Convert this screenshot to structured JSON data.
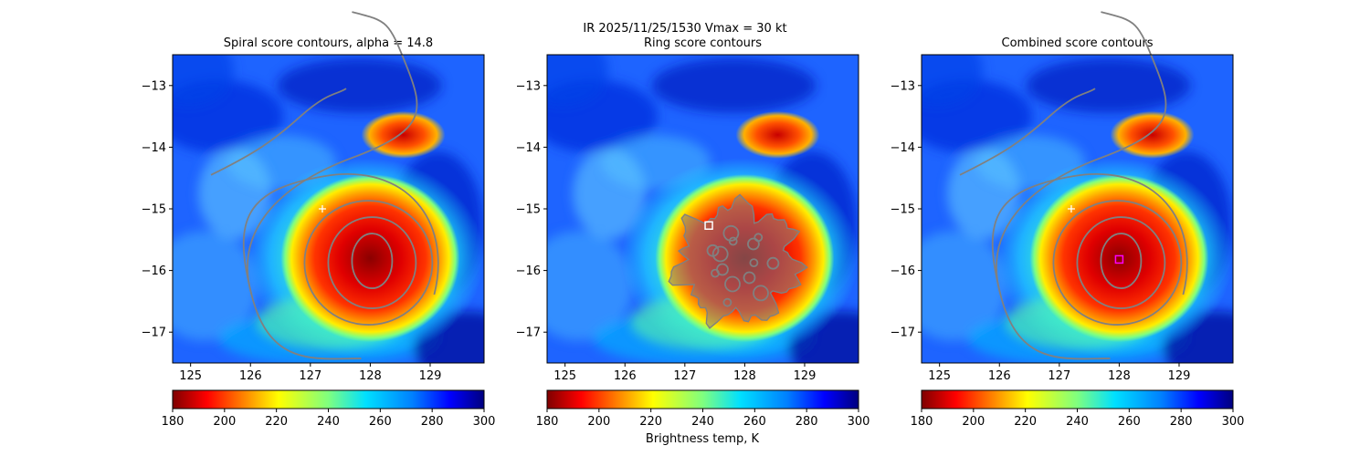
{
  "figure": {
    "suptitle": "IR  2025/11/25/1530    Vmax = 30 kt",
    "colorbar_label": "Brightness temp, K"
  },
  "chart_data": [
    {
      "type": "heatmap",
      "title": "Spiral score contours, alpha = 14.8",
      "xlim": [
        124.7,
        129.9
      ],
      "ylim": [
        -17.5,
        -12.5
      ],
      "xticks": [
        "125",
        "126",
        "127",
        "128",
        "129"
      ],
      "yticks": [
        "−13",
        "−14",
        "−15",
        "−16",
        "−17"
      ],
      "colorbar": {
        "vmin": 180,
        "vmax": 300,
        "ticks": [
          "180",
          "200",
          "220",
          "240",
          "260",
          "280",
          "300"
        ],
        "colormap": "jet_r"
      },
      "contour_color": "#808080",
      "markers": [
        {
          "kind": "plus",
          "x": 127.2,
          "y": -15.0,
          "color": "#ffffff"
        }
      ]
    },
    {
      "type": "heatmap",
      "title": "Ring score contours",
      "xlim": [
        124.7,
        129.9
      ],
      "ylim": [
        -17.5,
        -12.5
      ],
      "xticks": [
        "125",
        "126",
        "127",
        "128",
        "129"
      ],
      "yticks": [
        "−13",
        "−14",
        "−15",
        "−16",
        "−17"
      ],
      "colorbar": {
        "vmin": 180,
        "vmax": 300,
        "ticks": [
          "180",
          "200",
          "220",
          "240",
          "260",
          "280",
          "300"
        ],
        "colormap": "jet_r"
      },
      "contour_color": "#808080",
      "markers": [
        {
          "kind": "square",
          "x": 127.4,
          "y": -15.27,
          "color": "#ffffff"
        }
      ]
    },
    {
      "type": "heatmap",
      "title": "Combined score contours",
      "xlim": [
        124.7,
        129.9
      ],
      "ylim": [
        -17.5,
        -12.5
      ],
      "xticks": [
        "125",
        "126",
        "127",
        "128",
        "129"
      ],
      "yticks": [
        "−13",
        "−14",
        "−15",
        "−16",
        "−17"
      ],
      "colorbar": {
        "vmin": 180,
        "vmax": 300,
        "ticks": [
          "180",
          "200",
          "220",
          "240",
          "260",
          "280",
          "300"
        ],
        "colormap": "jet_r"
      },
      "contour_color": "#808080",
      "markers": [
        {
          "kind": "plus",
          "x": 127.2,
          "y": -15.0,
          "color": "#ffffff"
        },
        {
          "kind": "square",
          "x": 128.0,
          "y": -15.82,
          "color": "#ff00ff"
        }
      ]
    }
  ]
}
